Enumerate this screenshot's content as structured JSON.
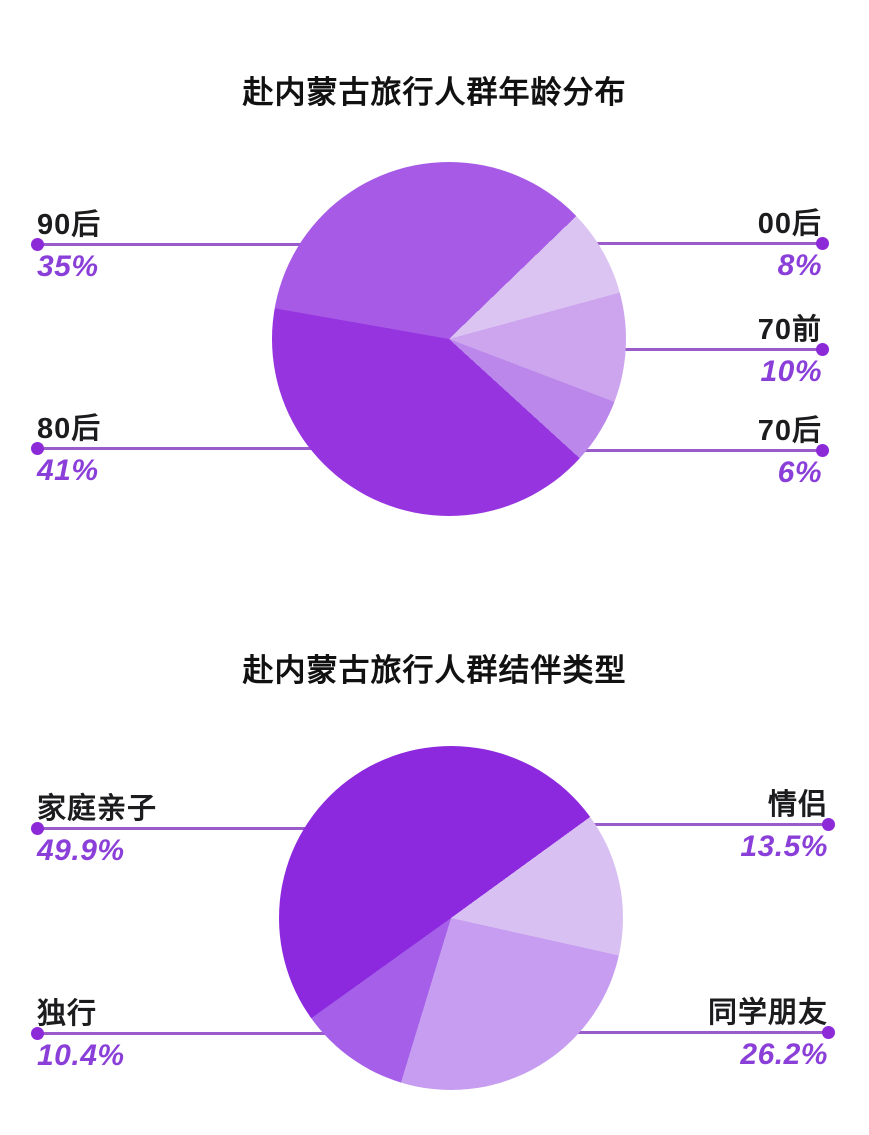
{
  "colors": {
    "background": "#ffffff",
    "title_text": "#111111",
    "label_text": "#1c1c1e",
    "value_text": "#8b3fd9",
    "callout_line": "#9a5ccb",
    "callout_dot": "#8d2ad8"
  },
  "chart_data": [
    {
      "type": "pie",
      "title": "赴内蒙古旅行人群年龄分布",
      "legend_position": "none",
      "start_angle_deg_from_top": 46,
      "slices": [
        {
          "label": "00后",
          "value_pct": 8,
          "display": "8%",
          "color": "#dcc4f2",
          "callout_side": "right"
        },
        {
          "label": "70前",
          "value_pct": 10,
          "display": "10%",
          "color": "#cda5ef",
          "callout_side": "right"
        },
        {
          "label": "70后",
          "value_pct": 6,
          "display": "6%",
          "color": "#bb87ea",
          "callout_side": "right"
        },
        {
          "label": "80后",
          "value_pct": 41,
          "display": "41%",
          "color": "#9634e0",
          "callout_side": "left"
        },
        {
          "label": "90后",
          "value_pct": 35,
          "display": "35%",
          "color": "#a65ae6",
          "callout_side": "left"
        }
      ]
    },
    {
      "type": "pie",
      "title": "赴内蒙古旅行人群结伴类型",
      "legend_position": "none",
      "start_angle_deg_from_top": 54,
      "slices": [
        {
          "label": "情侣",
          "value_pct": 13.5,
          "display": "13.5%",
          "color": "#d9c0f3",
          "callout_side": "right"
        },
        {
          "label": "同学朋友",
          "value_pct": 26.2,
          "display": "26.2%",
          "color": "#c69df0",
          "callout_side": "right"
        },
        {
          "label": "独行",
          "value_pct": 10.4,
          "display": "10.4%",
          "color": "#a55fe8",
          "callout_side": "left"
        },
        {
          "label": "家庭亲子",
          "value_pct": 49.9,
          "display": "49.9%",
          "color": "#8c28dd",
          "callout_side": "left"
        }
      ]
    }
  ]
}
